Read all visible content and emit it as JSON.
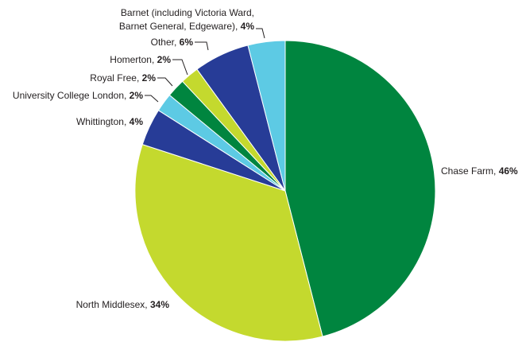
{
  "chart_data": {
    "type": "pie",
    "title": "",
    "slices": [
      {
        "label": "Chase Farm",
        "value": 46,
        "display": "46%",
        "color": "#00853f"
      },
      {
        "label": "North Middlesex",
        "value": 34,
        "display": "34%",
        "color": "#c4d92e"
      },
      {
        "label": "Whittington",
        "value": 4,
        "display": "4%",
        "color": "#273c97"
      },
      {
        "label": "University College London",
        "value": 2,
        "display": "2%",
        "color": "#5dcae4"
      },
      {
        "label": "Royal Free",
        "value": 2,
        "display": "2%",
        "color": "#00853f"
      },
      {
        "label": "Homerton",
        "value": 2,
        "display": "2%",
        "color": "#c4d92e"
      },
      {
        "label": "Other",
        "value": 6,
        "display": "6%",
        "color": "#273c97"
      },
      {
        "label_lines": [
          "Barnet (including Victoria Ward,",
          "Barnet General, Edgeware)"
        ],
        "value": 4,
        "display": "4%",
        "color": "#5dcae4"
      }
    ]
  }
}
